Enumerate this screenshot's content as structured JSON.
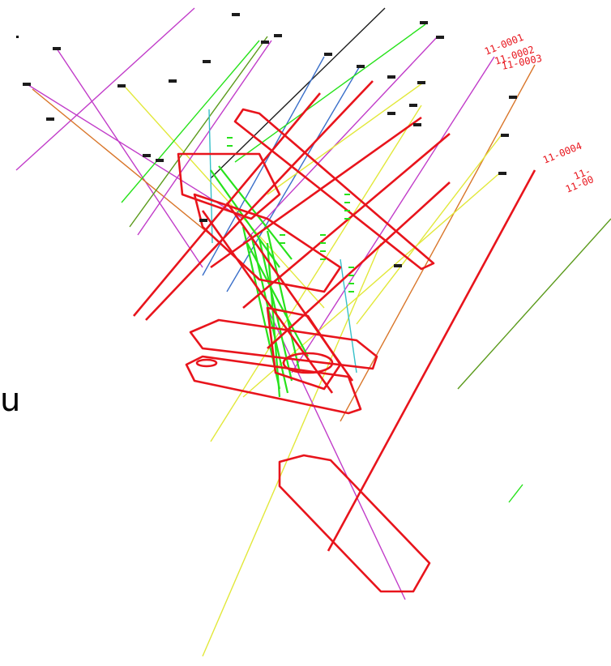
{
  "drawing": {
    "partial_glyph": "u",
    "hole_labels": [
      {
        "text": "11-0001"
      },
      {
        "text": "11-0002"
      },
      {
        "text": "11-0003"
      },
      {
        "text": "11-0004"
      },
      {
        "text": "11-"
      },
      {
        "text": "11-00"
      }
    ],
    "colors": {
      "outline": "#e8141c",
      "green": "#27e21b",
      "yellow": "#e2e83a",
      "magenta": "#c13cc9",
      "blue": "#3a6fc9",
      "olive": "#5a9a1a",
      "cyan": "#35c0c9",
      "orange": "#d9762a",
      "black": "#1c1c1c"
    }
  }
}
